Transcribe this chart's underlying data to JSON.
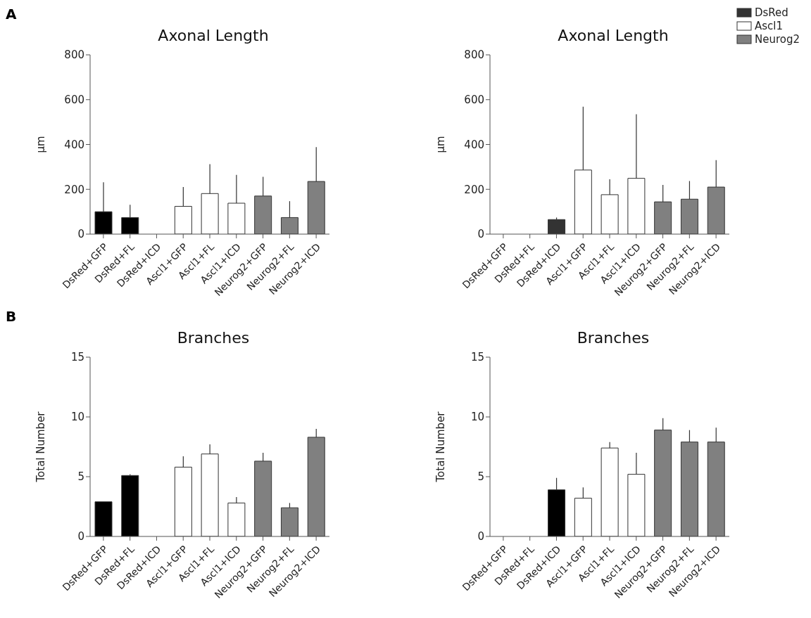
{
  "chart_data": [
    {
      "type": "bar",
      "title": "Axonal Length",
      "ylabel": "μm",
      "annotations": [
        "A"
      ],
      "stacked": true,
      "legend": false,
      "grid": false,
      "ylim": [
        0,
        800
      ],
      "yticks": [
        0,
        200,
        400,
        600,
        800
      ],
      "categories": [
        "DsRed+GFP",
        "DsRed+FL",
        "DsRed+ICD",
        "Ascl1+GFP",
        "Ascl1+FL",
        "Ascl1+ICD",
        "Neurog2+GFP",
        "Neurog2+FL",
        "Neurog2+ICD"
      ],
      "series": [
        {
          "color": "#000000",
          "values": [
            100,
            74,
            null,
            null,
            null,
            null,
            null,
            null,
            null
          ],
          "errors": [
            [
              100,
              231
            ],
            [
              74,
              131
            ],
            null,
            null,
            null,
            null,
            null,
            null,
            null
          ]
        },
        {
          "color": "#ffffff",
          "values": [
            null,
            null,
            null,
            124,
            181,
            138,
            null,
            null,
            null
          ],
          "errors": [
            null,
            null,
            null,
            [
              124,
              210
            ],
            [
              181,
              312
            ],
            [
              138,
              264
            ],
            null,
            null,
            null
          ]
        },
        {
          "color": "#808080",
          "values": [
            null,
            null,
            null,
            null,
            null,
            null,
            170,
            74,
            235
          ],
          "errors": [
            null,
            null,
            null,
            null,
            null,
            null,
            [
              170,
              256
            ],
            [
              74,
              147
            ],
            [
              235,
              388
            ]
          ]
        }
      ]
    },
    {
      "type": "bar",
      "title": "Axonal Length",
      "ylabel": "μm",
      "stacked": true,
      "legend": "top right",
      "grid": false,
      "ylim": [
        0,
        800
      ],
      "yticks": [
        0,
        200,
        400,
        600,
        800
      ],
      "categories": [
        "DsRed+GFP",
        "DsRed+FL",
        "DsRed+ICD",
        "Ascl1+GFP",
        "Ascl1+FL",
        "Ascl1+ICD",
        "Neurog2+GFP",
        "Neurog2+FL",
        "Neurog2+ICD"
      ],
      "series": [
        {
          "name": "DsRed",
          "color": "#333333",
          "values": [
            null,
            null,
            65,
            null,
            null,
            null,
            null,
            null,
            null
          ],
          "errors": [
            null,
            null,
            [
              65,
              74
            ],
            null,
            null,
            null,
            null,
            null,
            null
          ]
        },
        {
          "name": "Ascl1",
          "color": "#ffffff",
          "values": [
            null,
            null,
            null,
            286,
            176,
            249,
            null,
            null,
            null
          ],
          "errors": [
            null,
            null,
            null,
            [
              286,
              569
            ],
            [
              176,
              245
            ],
            [
              249,
              535
            ],
            null,
            null,
            null
          ]
        },
        {
          "name": "Neurog2",
          "color": "#808080",
          "values": [
            null,
            null,
            null,
            null,
            null,
            null,
            144,
            156,
            210
          ],
          "errors": [
            null,
            null,
            null,
            null,
            null,
            null,
            [
              144,
              220
            ],
            [
              156,
              237
            ],
            [
              210,
              330
            ]
          ]
        }
      ]
    },
    {
      "type": "bar",
      "title": "Branches",
      "ylabel": "Total Number",
      "annotations": [
        "B"
      ],
      "stacked": true,
      "legend": false,
      "grid": false,
      "ylim": [
        0,
        15
      ],
      "yticks": [
        0,
        5,
        10,
        15
      ],
      "categories": [
        "DsRed+GFP",
        "DsRed+FL",
        "DsRed+ICD",
        "Ascl1+GFP",
        "Ascl1+FL",
        "Ascl1+ICD",
        "Neurog2+GFP",
        "Neurog2+FL",
        "Neurog2+ICD"
      ],
      "series": [
        {
          "color": "#000000",
          "values": [
            2.9,
            5.1,
            null,
            null,
            null,
            null,
            null,
            null,
            null
          ],
          "errors": [
            null,
            [
              5.1,
              5.2
            ],
            null,
            null,
            null,
            null,
            null,
            null,
            null
          ]
        },
        {
          "color": "#ffffff",
          "values": [
            null,
            null,
            null,
            5.8,
            6.9,
            2.8,
            null,
            null,
            null
          ],
          "errors": [
            null,
            null,
            null,
            [
              5.8,
              6.7
            ],
            [
              6.9,
              7.7
            ],
            [
              2.8,
              3.3
            ],
            null,
            null,
            null
          ]
        },
        {
          "color": "#808080",
          "values": [
            null,
            null,
            null,
            null,
            null,
            null,
            6.3,
            2.4,
            8.3
          ],
          "errors": [
            null,
            null,
            null,
            null,
            null,
            null,
            [
              6.3,
              7.0
            ],
            [
              2.4,
              2.8
            ],
            [
              8.3,
              9.0
            ]
          ]
        }
      ]
    },
    {
      "type": "bar",
      "title": "Branches",
      "ylabel": "Total Number",
      "stacked": true,
      "legend": false,
      "grid": false,
      "ylim": [
        0,
        15
      ],
      "yticks": [
        0,
        5,
        10,
        15
      ],
      "categories": [
        "DsRed+GFP",
        "DsRed+FL",
        "DsRed+ICD",
        "Ascl1+GFP",
        "Ascl1+FL",
        "Ascl1+ICD",
        "Neurog2+GFP",
        "Neurog2+FL",
        "Neurog2+ICD"
      ],
      "series": [
        {
          "color": "#000000",
          "values": [
            null,
            null,
            3.9,
            null,
            null,
            null,
            null,
            null,
            null
          ],
          "errors": [
            null,
            null,
            [
              3.9,
              4.9
            ],
            null,
            null,
            null,
            null,
            null,
            null
          ]
        },
        {
          "color": "#ffffff",
          "values": [
            null,
            null,
            null,
            3.2,
            7.4,
            5.2,
            null,
            null,
            null
          ],
          "errors": [
            null,
            null,
            null,
            [
              3.2,
              4.1
            ],
            [
              7.4,
              7.9
            ],
            [
              5.2,
              7.0
            ],
            null,
            null,
            null
          ]
        },
        {
          "color": "#808080",
          "values": [
            null,
            null,
            null,
            null,
            null,
            null,
            8.9,
            7.9,
            7.9
          ],
          "errors": [
            null,
            null,
            null,
            null,
            null,
            null,
            [
              8.9,
              9.9
            ],
            [
              7.9,
              8.9
            ],
            [
              7.9,
              9.1
            ]
          ]
        }
      ]
    }
  ]
}
